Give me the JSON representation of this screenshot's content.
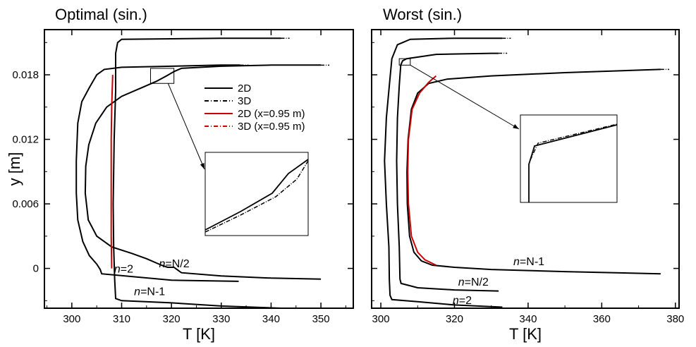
{
  "chart_data": [
    {
      "type": "line",
      "title": "Optimal (sin.)",
      "xlabel": "T [K]",
      "ylabel": "y [m]",
      "xlim": [
        294.5,
        356.5
      ],
      "ylim": [
        -0.0037,
        0.0222
      ],
      "xticks": [
        300,
        310,
        320,
        330,
        340,
        350
      ],
      "xtick_labels": [
        "300",
        "310",
        "320",
        "330",
        "340",
        "350"
      ],
      "yticks": [
        0,
        0.006,
        0.012,
        0.018
      ],
      "ytick_labels": [
        "0",
        "0.006",
        "0.012",
        "0.018"
      ],
      "legend": {
        "location": "upper-right",
        "entries": [
          {
            "label": "2D",
            "color": "#000000",
            "style": "solid"
          },
          {
            "label": "3D",
            "color": "#000000",
            "style": "dashdot"
          },
          {
            "label": "2D (x=0.95 m)",
            "color": "#cc0000",
            "style": "solid"
          },
          {
            "label": "3D (x=0.95 m)",
            "color": "#cc0000",
            "style": "dashdot"
          }
        ]
      },
      "annotations": [
        {
          "text": "n=2",
          "italic_part": "n",
          "rest": "=2",
          "x": 308.5,
          "y": -0.0004
        },
        {
          "text": "n=N/2",
          "italic_part": "n",
          "rest": "=N/2",
          "x": 317.5,
          "y": 0.0001
        },
        {
          "text": "n=N-1",
          "italic_part": "n",
          "rest": "=N-1",
          "x": 312.5,
          "y": -0.0025
        }
      ],
      "zoom_box": {
        "x_range": [
          315.8,
          320.5
        ],
        "y_range": [
          0.0172,
          0.0186
        ]
      },
      "series": [
        {
          "name": "n=2",
          "color": "#000000",
          "points": [
            [
              333.5,
              -0.0012
            ],
            [
              320,
              -0.0011
            ],
            [
              306,
              -0.0005
            ],
            [
              305.7,
              -0.0001
            ],
            [
              305,
              0.0004
            ],
            [
              303.5,
              0.0012
            ],
            [
              302.2,
              0.0025
            ],
            [
              301.2,
              0.0045
            ],
            [
              300.9,
              0.007
            ],
            [
              300.9,
              0.01
            ],
            [
              301.2,
              0.0135
            ],
            [
              302,
              0.0155
            ],
            [
              303.5,
              0.0168
            ],
            [
              305,
              0.018
            ],
            [
              306.5,
              0.0185
            ],
            [
              310,
              0.0187
            ],
            [
              320,
              0.0188
            ],
            [
              330,
              0.0189
            ],
            [
              333.8,
              0.0189
            ]
          ]
        },
        {
          "name": "n=N/2",
          "color": "#000000",
          "points": [
            [
              350,
              -0.001
            ],
            [
              340,
              -0.0009
            ],
            [
              330,
              -0.0007
            ],
            [
              322,
              -0.0004
            ],
            [
              320.5,
              0.0001
            ],
            [
              319.2,
              0.0001
            ],
            [
              318,
              0.0003
            ],
            [
              315,
              0.0009
            ],
            [
              312,
              0.0014
            ],
            [
              308,
              0.002
            ],
            [
              305,
              0.003
            ],
            [
              303.3,
              0.0045
            ],
            [
              302.7,
              0.007
            ],
            [
              302.8,
              0.0095
            ],
            [
              303.4,
              0.0115
            ],
            [
              304.8,
              0.0135
            ],
            [
              307,
              0.015
            ],
            [
              310,
              0.016
            ],
            [
              314,
              0.0168
            ],
            [
              317,
              0.0174
            ],
            [
              319,
              0.0179
            ],
            [
              320.5,
              0.0183
            ],
            [
              322,
              0.0186
            ],
            [
              330,
              0.0188
            ],
            [
              340,
              0.0189
            ],
            [
              350,
              0.0189
            ]
          ]
        },
        {
          "name": "n=N-1",
          "color": "#000000",
          "points": [
            [
              342,
              -0.0037
            ],
            [
              330,
              -0.0035
            ],
            [
              320,
              -0.0032
            ],
            [
              310,
              -0.003
            ],
            [
              308.8,
              -0.0028
            ],
            [
              308.6,
              -0.001
            ],
            [
              308.4,
              0.002
            ],
            [
              308.3,
              0.006
            ],
            [
              308.5,
              0.012
            ],
            [
              308.8,
              0.0165
            ],
            [
              308.8,
              0.02
            ],
            [
              309.2,
              0.021
            ],
            [
              310,
              0.0213
            ],
            [
              330,
              0.0214
            ],
            [
              342,
              0.0214
            ]
          ]
        },
        {
          "name": "2D (x=0.95 m)",
          "color": "#cc0000",
          "points": [
            [
              308,
              0
            ],
            [
              307.9,
              0.003
            ],
            [
              307.9,
              0.006
            ],
            [
              307.9,
              0.009
            ],
            [
              307.9,
              0.012
            ],
            [
              308,
              0.015
            ],
            [
              308.2,
              0.018
            ]
          ]
        }
      ]
    },
    {
      "type": "line",
      "title": "Worst (sin.)",
      "xlabel": "T [K]",
      "ylabel": "",
      "xlim": [
        297.5,
        381
      ],
      "ylim": [
        -0.0037,
        0.0222
      ],
      "xticks": [
        300,
        320,
        340,
        360,
        380
      ],
      "xtick_labels": [
        "300",
        "320",
        "340",
        "360",
        "380"
      ],
      "yticks": [
        0,
        0.006,
        0.012,
        0.018
      ],
      "annotations": [
        {
          "text": "n=N-1",
          "italic_part": "n",
          "rest": "=N-1",
          "x": 336,
          "y": 0.0003
        },
        {
          "text": "n=N/2",
          "italic_part": "n",
          "rest": "=N/2",
          "x": 321,
          "y": -0.0016
        },
        {
          "text": "n=2",
          "italic_part": "n",
          "rest": "=2",
          "x": 319.5,
          "y": -0.0033
        }
      ],
      "zoom_box": {
        "x_range": [
          305,
          308
        ],
        "y_range": [
          0.0189,
          0.0195
        ]
      },
      "series": [
        {
          "name": "n=2",
          "color": "#000000",
          "points": [
            [
              333,
              -0.0036
            ],
            [
              320,
              -0.0034
            ],
            [
              310,
              -0.0031
            ],
            [
              303,
              -0.0029
            ],
            [
              302.5,
              -0.0025
            ],
            [
              302.3,
              -0.001
            ],
            [
              302.2,
              0.002
            ],
            [
              301.5,
              0.006
            ],
            [
              301,
              0.01
            ],
            [
              301.5,
              0.014
            ],
            [
              302.3,
              0.017
            ],
            [
              303,
              0.0195
            ],
            [
              304.5,
              0.0208
            ],
            [
              308,
              0.0213
            ],
            [
              320,
              0.0214
            ],
            [
              333,
              0.0214
            ]
          ]
        },
        {
          "name": "n=N/2",
          "color": "#000000",
          "points": [
            [
              332,
              -0.0021
            ],
            [
              320,
              -0.002
            ],
            [
              310,
              -0.0018
            ],
            [
              305.5,
              -0.0014
            ],
            [
              305.2,
              -0.001
            ],
            [
              305,
              0.002
            ],
            [
              304.5,
              0.006
            ],
            [
              304.3,
              0.01
            ],
            [
              304.5,
              0.014
            ],
            [
              305,
              0.017
            ],
            [
              305.4,
              0.0189
            ],
            [
              305.9,
              0.0193
            ],
            [
              307,
              0.0195
            ],
            [
              315,
              0.0199
            ],
            [
              330,
              0.02
            ],
            [
              332,
              0.02
            ]
          ]
        },
        {
          "name": "n=N-1",
          "color": "#000000",
          "points": [
            [
              376,
              -0.0005
            ],
            [
              350,
              -0.0003
            ],
            [
              330,
              -0.0001
            ],
            [
              320,
              0.0001
            ],
            [
              314,
              0.0003
            ],
            [
              311,
              0.0007
            ],
            [
              309,
              0.0015
            ],
            [
              307.8,
              0.003
            ],
            [
              307.2,
              0.006
            ],
            [
              307.1,
              0.009
            ],
            [
              307.4,
              0.012
            ],
            [
              308.3,
              0.0148
            ],
            [
              310,
              0.0163
            ],
            [
              313,
              0.0172
            ],
            [
              318,
              0.0176
            ],
            [
              330,
              0.0179
            ],
            [
              350,
              0.0182
            ],
            [
              376,
              0.0185
            ]
          ]
        },
        {
          "name": "2D (x=0.95 m)",
          "color": "#cc0000",
          "points": [
            [
              315,
              0.0003
            ],
            [
              312,
              0.0008
            ],
            [
              310,
              0.0015
            ],
            [
              308.3,
              0.003
            ],
            [
              307.5,
              0.006
            ],
            [
              307.3,
              0.009
            ],
            [
              307.5,
              0.012
            ],
            [
              308.5,
              0.0148
            ],
            [
              310.5,
              0.0163
            ],
            [
              313,
              0.0173
            ],
            [
              315,
              0.0179
            ]
          ]
        }
      ]
    }
  ]
}
